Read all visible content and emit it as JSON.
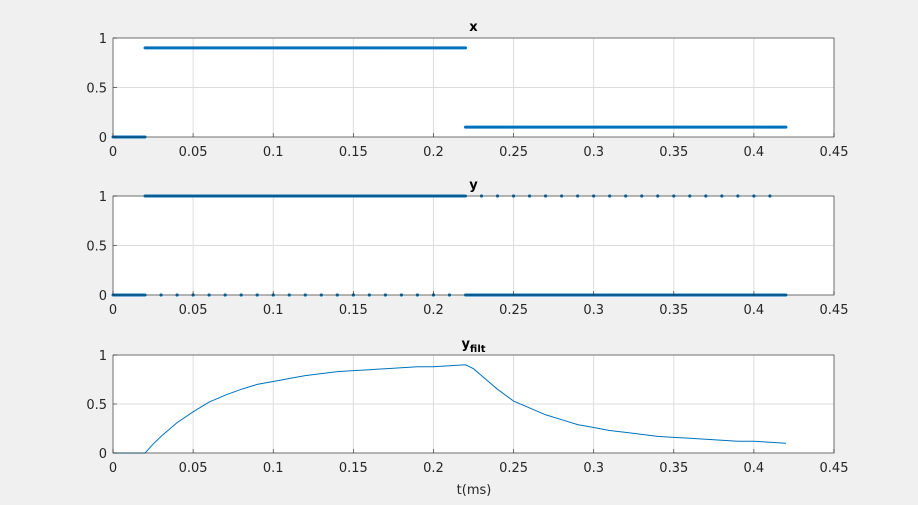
{
  "figure": {
    "background": "#f0f0f0",
    "xlabel": "t(ms)"
  },
  "style": {
    "line_color": "#0072bd",
    "grid_color": "#dcdcdc",
    "axis_color": "#262626",
    "plot_background": "#ffffff"
  },
  "chart_data": [
    {
      "type": "scatter",
      "title": "x",
      "title_sub": "",
      "xlim": [
        0,
        0.45
      ],
      "ylim": [
        0,
        1
      ],
      "xticks": [
        0,
        0.05,
        0.1,
        0.15,
        0.2,
        0.25,
        0.3,
        0.35,
        0.4,
        0.45
      ],
      "yticks": [
        0,
        0.5,
        1
      ],
      "xtick_labels": [
        "0",
        "0.05",
        "0.1",
        "0.15",
        "0.2",
        "0.25",
        "0.3",
        "0.35",
        "0.4",
        "0.45"
      ],
      "ytick_labels": [
        "0",
        "0.5",
        "1"
      ],
      "grid": true,
      "xlabel": "",
      "series": [
        {
          "style": "dots",
          "segments": [
            {
              "x_start": 0,
              "x_end": 0.02,
              "y": 0
            },
            {
              "x_start": 0.02,
              "x_end": 0.22,
              "y": 0.9
            },
            {
              "x_start": 0.22,
              "x_end": 0.42,
              "y": 0.1
            }
          ]
        }
      ]
    },
    {
      "type": "scatter",
      "title": "y",
      "title_sub": "",
      "xlim": [
        0,
        0.45
      ],
      "ylim": [
        0,
        1
      ],
      "xticks": [
        0,
        0.05,
        0.1,
        0.15,
        0.2,
        0.25,
        0.3,
        0.35,
        0.4,
        0.45
      ],
      "yticks": [
        0,
        0.5,
        1
      ],
      "xtick_labels": [
        "0",
        "0.05",
        "0.1",
        "0.15",
        "0.2",
        "0.25",
        "0.3",
        "0.35",
        "0.4",
        "0.45"
      ],
      "ytick_labels": [
        "0",
        "0.5",
        "1"
      ],
      "grid": true,
      "xlabel": "",
      "series": [
        {
          "style": "dots",
          "segments": [
            {
              "x_start": 0,
              "x_end": 0.02,
              "y": 0
            },
            {
              "x_start": 0.02,
              "x_end": 0.22,
              "y": 1
            },
            {
              "x_start": 0.22,
              "x_end": 0.42,
              "y": 0
            }
          ],
          "sparse_points": [
            {
              "y": 1,
              "x": [
                0.23,
                0.24,
                0.25,
                0.26,
                0.27,
                0.28,
                0.29,
                0.3,
                0.31,
                0.32,
                0.33,
                0.34,
                0.35,
                0.36,
                0.37,
                0.38,
                0.39,
                0.4,
                0.41
              ]
            },
            {
              "y": 0,
              "x": [
                0.03,
                0.04,
                0.05,
                0.06,
                0.07,
                0.08,
                0.09,
                0.1,
                0.11,
                0.12,
                0.13,
                0.14,
                0.15,
                0.16,
                0.17,
                0.18,
                0.19,
                0.2,
                0.21
              ]
            }
          ]
        }
      ]
    },
    {
      "type": "line",
      "title": "y",
      "title_sub": "filt",
      "xlim": [
        0,
        0.45
      ],
      "ylim": [
        0,
        1
      ],
      "xticks": [
        0,
        0.05,
        0.1,
        0.15,
        0.2,
        0.25,
        0.3,
        0.35,
        0.4,
        0.45
      ],
      "yticks": [
        0,
        0.5,
        1
      ],
      "xtick_labels": [
        "0",
        "0.05",
        "0.1",
        "0.15",
        "0.2",
        "0.25",
        "0.3",
        "0.35",
        "0.4",
        "0.45"
      ],
      "ytick_labels": [
        "0",
        "0.5",
        "1"
      ],
      "grid": true,
      "xlabel": "t(ms)",
      "series": [
        {
          "style": "line",
          "x": [
            0,
            0.02,
            0.025,
            0.03,
            0.04,
            0.05,
            0.06,
            0.07,
            0.08,
            0.09,
            0.1,
            0.11,
            0.12,
            0.13,
            0.14,
            0.15,
            0.16,
            0.17,
            0.18,
            0.19,
            0.2,
            0.21,
            0.22,
            0.225,
            0.23,
            0.24,
            0.25,
            0.26,
            0.27,
            0.28,
            0.29,
            0.3,
            0.31,
            0.32,
            0.33,
            0.34,
            0.35,
            0.36,
            0.37,
            0.38,
            0.39,
            0.4,
            0.41,
            0.42
          ],
          "y": [
            0,
            0,
            0.09,
            0.17,
            0.31,
            0.42,
            0.52,
            0.59,
            0.65,
            0.7,
            0.73,
            0.76,
            0.79,
            0.81,
            0.83,
            0.84,
            0.85,
            0.86,
            0.87,
            0.88,
            0.88,
            0.89,
            0.9,
            0.86,
            0.79,
            0.65,
            0.53,
            0.46,
            0.39,
            0.34,
            0.29,
            0.26,
            0.23,
            0.21,
            0.19,
            0.17,
            0.16,
            0.15,
            0.14,
            0.13,
            0.12,
            0.12,
            0.11,
            0.1
          ]
        }
      ]
    }
  ]
}
